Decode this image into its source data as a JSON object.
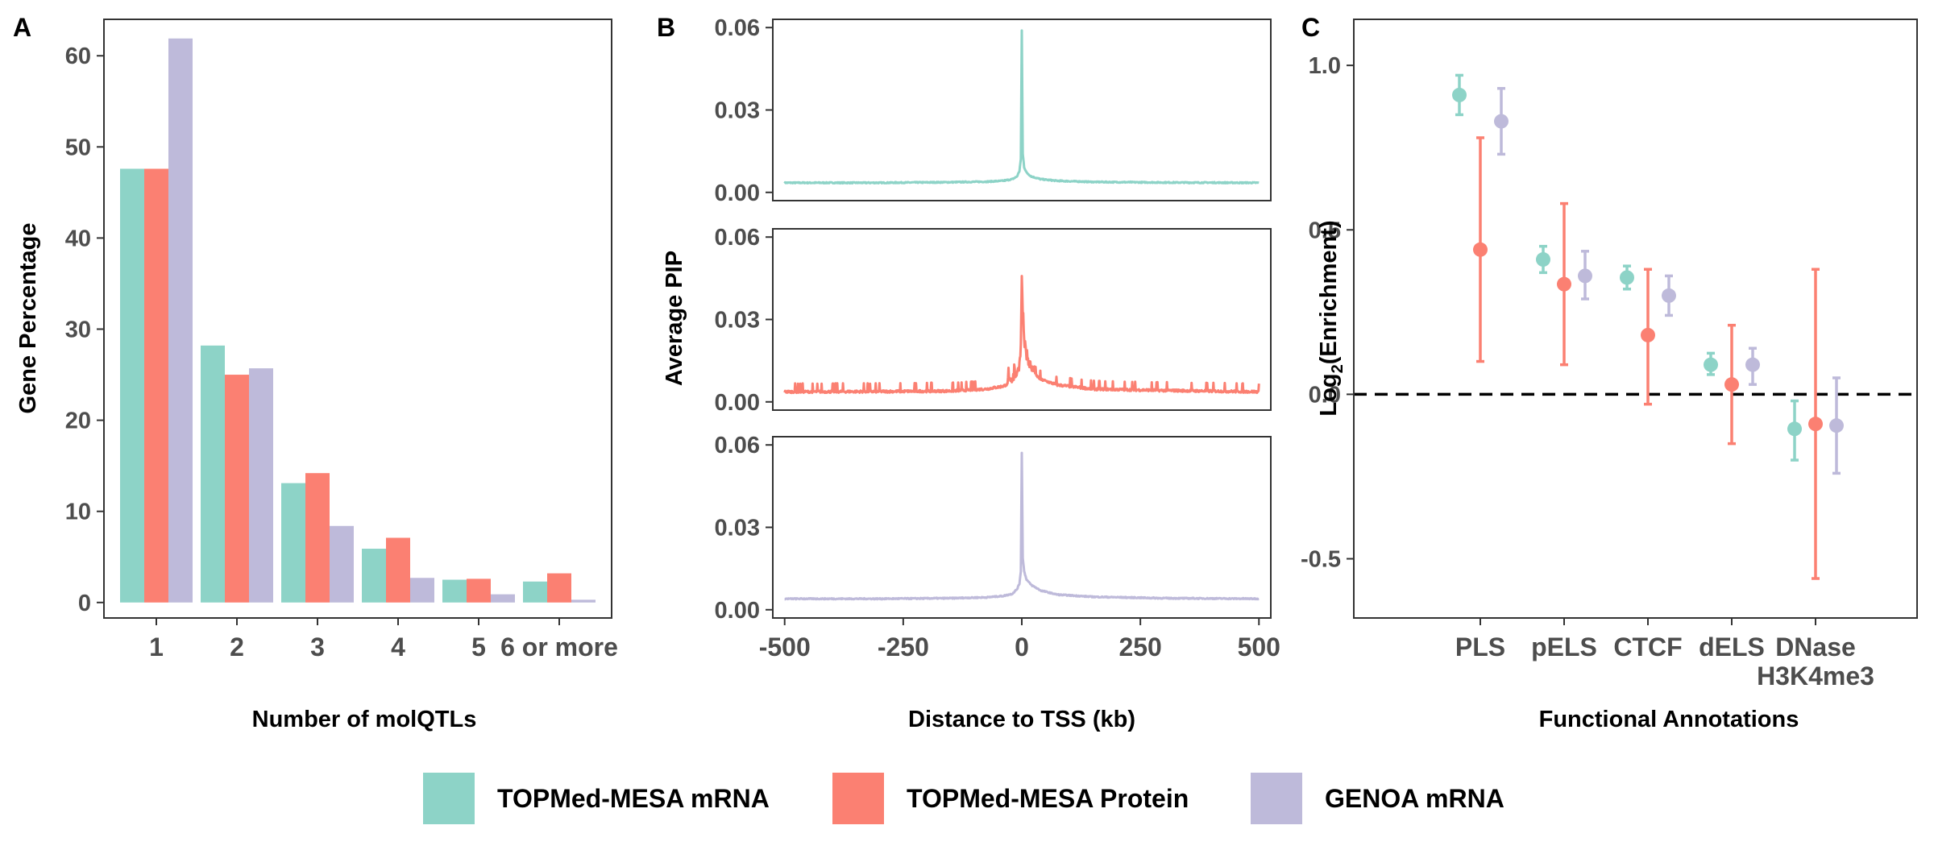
{
  "colors": {
    "mrna": "#8dd3c7",
    "protein": "#fb8072",
    "genoa": "#bebada",
    "axis_text": "#4d4d4d",
    "title_text": "#000000"
  },
  "legend": {
    "items": [
      {
        "label": "TOPMed-MESA mRNA",
        "color": "#8dd3c7"
      },
      {
        "label": "TOPMed-MESA Protein",
        "color": "#fb8072"
      },
      {
        "label": "GENOA mRNA",
        "color": "#bebada"
      }
    ]
  },
  "chart_data": [
    {
      "panel": "A",
      "type": "bar",
      "xlabel": "Number of molQTLs",
      "ylabel": "Gene Percentage",
      "ylim": [
        -1.7,
        64
      ],
      "yticks": [
        0,
        10,
        20,
        30,
        40,
        50,
        60
      ],
      "categories": [
        "1",
        "2",
        "3",
        "4",
        "5",
        "6 or more"
      ],
      "series": [
        {
          "name": "TOPMed-MESA mRNA",
          "values": [
            47.6,
            28.2,
            13.1,
            5.9,
            2.5,
            2.3
          ]
        },
        {
          "name": "TOPMed-MESA Protein",
          "values": [
            47.6,
            25.0,
            14.2,
            7.1,
            2.6,
            3.2
          ]
        },
        {
          "name": "GENOA mRNA",
          "values": [
            61.9,
            25.7,
            8.4,
            2.7,
            0.9,
            0.3
          ]
        }
      ]
    },
    {
      "panel": "B",
      "type": "line",
      "xlabel": "Distance to TSS (kb)",
      "ylabel": "Average PIP",
      "xlim": [
        -525,
        525
      ],
      "ylim": [
        -0.003,
        0.063
      ],
      "xticks": [
        -500,
        -250,
        0,
        250,
        500
      ],
      "yticks": [
        "0.00",
        "0.03",
        "0.06"
      ],
      "series": [
        {
          "name": "TOPMed-MESA mRNA",
          "x": [
            -500,
            -300,
            -150,
            -75,
            -40,
            -20,
            -10,
            -5,
            -2,
            0,
            2,
            5,
            10,
            20,
            40,
            75,
            150,
            300,
            500
          ],
          "y": [
            0.0035,
            0.0035,
            0.0037,
            0.0039,
            0.0042,
            0.0048,
            0.0058,
            0.0078,
            0.012,
            0.059,
            0.014,
            0.0092,
            0.0072,
            0.0058,
            0.0048,
            0.0042,
            0.0038,
            0.0036,
            0.0035
          ]
        },
        {
          "name": "TOPMed-MESA Protein",
          "x": [
            -500,
            -300,
            -150,
            -75,
            -40,
            -20,
            -10,
            -5,
            -2,
            0,
            2,
            5,
            10,
            20,
            40,
            75,
            150,
            300,
            500
          ],
          "y": [
            0.0035,
            0.0036,
            0.0038,
            0.0045,
            0.0055,
            0.007,
            0.009,
            0.012,
            0.018,
            0.044,
            0.03,
            0.02,
            0.015,
            0.011,
            0.008,
            0.006,
            0.0045,
            0.004,
            0.0035
          ],
          "noise": 0.0025
        },
        {
          "name": "GENOA mRNA",
          "x": [
            -500,
            -300,
            -150,
            -75,
            -40,
            -20,
            -10,
            -5,
            -2,
            0,
            2,
            5,
            10,
            20,
            40,
            75,
            150,
            300,
            500
          ],
          "y": [
            0.004,
            0.004,
            0.0042,
            0.0045,
            0.005,
            0.0058,
            0.0075,
            0.0095,
            0.014,
            0.057,
            0.019,
            0.014,
            0.011,
            0.009,
            0.007,
            0.0055,
            0.0047,
            0.0042,
            0.004
          ]
        }
      ]
    },
    {
      "panel": "C",
      "type": "scatter",
      "xlabel": "Functional Annotations",
      "ylabel": "Log2(Enrichment)",
      "ylim": [
        -0.68,
        1.14
      ],
      "yticks": [
        "-0.5",
        "0.0",
        "0.5",
        "1.0"
      ],
      "categories": [
        "PLS",
        "pELS",
        "CTCF",
        "dELS",
        "DNase\nH3K4me3"
      ],
      "reference_line": 0,
      "series": [
        {
          "name": "TOPMed-MESA mRNA",
          "points": [
            [
              0.91,
              0.85,
              0.97
            ],
            [
              0.41,
              0.37,
              0.45
            ],
            [
              0.355,
              0.32,
              0.39
            ],
            [
              0.09,
              0.06,
              0.125
            ],
            [
              -0.105,
              -0.2,
              -0.02
            ]
          ]
        },
        {
          "name": "TOPMed-MESA Protein",
          "points": [
            [
              0.44,
              0.1,
              0.78
            ],
            [
              0.335,
              0.09,
              0.58
            ],
            [
              0.18,
              -0.03,
              0.38
            ],
            [
              0.03,
              -0.15,
              0.21
            ],
            [
              -0.09,
              -0.56,
              0.38
            ]
          ]
        },
        {
          "name": "GENOA mRNA",
          "points": [
            [
              0.83,
              0.73,
              0.93
            ],
            [
              0.36,
              0.29,
              0.435
            ],
            [
              0.3,
              0.24,
              0.36
            ],
            [
              0.09,
              0.03,
              0.14
            ],
            [
              -0.095,
              -0.24,
              0.05
            ]
          ]
        }
      ]
    }
  ]
}
